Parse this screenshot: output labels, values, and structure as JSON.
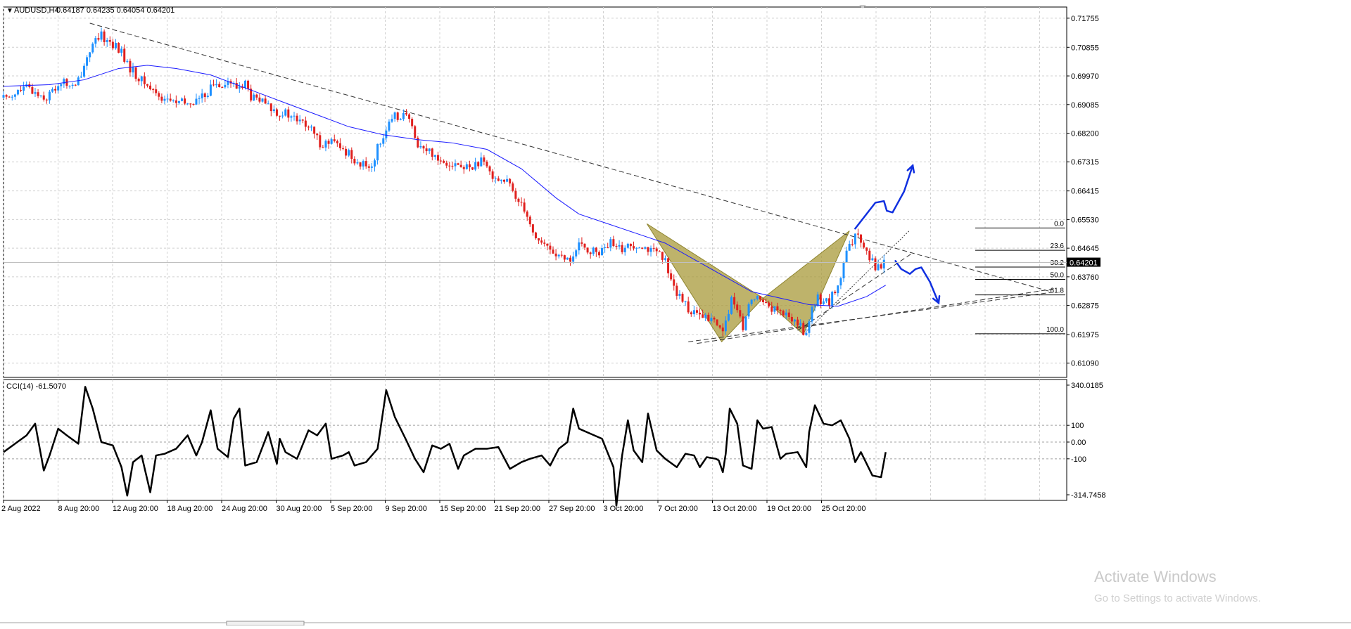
{
  "main_title": {
    "arrow_glyph": "▼",
    "symbol": "AUDUSD,H4",
    "ohlc": "0.64187 0.64235 0.64054 0.64201"
  },
  "indicator_title": "CCI(14) -61.5070",
  "current_price_label": "0.64201",
  "fib_levels": [
    {
      "label": "0.0",
      "price": 0.6527
    },
    {
      "label": "23.6",
      "price": 0.6458
    },
    {
      "label": "38.2",
      "price": 0.6406
    },
    {
      "label": "50.0",
      "price": 0.6368
    },
    {
      "label": "61.8",
      "price": 0.632
    },
    {
      "label": "100.0",
      "price": 0.62
    }
  ],
  "watermark": {
    "line1": "Activate Windows",
    "line2": "Go to Settings to activate Windows."
  },
  "colors": {
    "bull": "#1e90ff",
    "bear": "#e0201e",
    "ma": "#1a1aff",
    "harmonic": "#a89a3a",
    "drawing": "#1030e0",
    "cci": "#000000"
  },
  "chart_data": [
    {
      "type": "candlestick",
      "symbol": "AUDUSD",
      "timeframe": "H4",
      "ylim": [
        0.6065,
        0.721
      ],
      "y_ticks": [
        "0.71755",
        "0.70855",
        "0.69970",
        "0.69085",
        "0.68200",
        "0.67315",
        "0.66415",
        "0.65530",
        "0.64645",
        "0.63760",
        "0.62875",
        "0.61975",
        "0.61090"
      ],
      "x_ticks": [
        "2 Aug 2022",
        "8 Aug 20:00",
        "12 Aug 20:00",
        "18 Aug 20:00",
        "24 Aug 20:00",
        "30 Aug 20:00",
        "5 Sep 20:00",
        "9 Sep 20:00",
        "15 Sep 20:00",
        "21 Sep 20:00",
        "27 Sep 20:00",
        "3 Oct 20:00",
        "7 Oct 20:00",
        "13 Oct 20:00",
        "19 Oct 20:00",
        "25 Oct 20:00"
      ],
      "grid": true,
      "last_close": 0.64201,
      "price_path": [
        [
          0,
          0.693
        ],
        [
          40,
          0.696
        ],
        [
          75,
          0.693
        ],
        [
          100,
          0.698
        ],
        [
          125,
          0.696
        ],
        [
          150,
          0.708
        ],
        [
          170,
          0.712
        ],
        [
          190,
          0.7095
        ],
        [
          205,
          0.707
        ],
        [
          215,
          0.703
        ],
        [
          235,
          0.699
        ],
        [
          255,
          0.696
        ],
        [
          275,
          0.693
        ],
        [
          300,
          0.6915
        ],
        [
          320,
          0.691
        ],
        [
          345,
          0.693
        ],
        [
          365,
          0.697
        ],
        [
          390,
          0.698
        ],
        [
          405,
          0.696
        ],
        [
          420,
          0.6975
        ],
        [
          430,
          0.693
        ],
        [
          445,
          0.692
        ],
        [
          470,
          0.689
        ],
        [
          490,
          0.688
        ],
        [
          510,
          0.686
        ],
        [
          530,
          0.684
        ],
        [
          550,
          0.679
        ],
        [
          575,
          0.679
        ],
        [
          585,
          0.677
        ],
        [
          600,
          0.676
        ],
        [
          620,
          0.672
        ],
        [
          640,
          0.672
        ],
        [
          655,
          0.68
        ],
        [
          665,
          0.683
        ],
        [
          680,
          0.687
        ],
        [
          695,
          0.688
        ],
        [
          705,
          0.686
        ],
        [
          715,
          0.68
        ],
        [
          730,
          0.677
        ],
        [
          745,
          0.676
        ],
        [
          760,
          0.6735
        ],
        [
          780,
          0.673
        ],
        [
          800,
          0.671
        ],
        [
          815,
          0.672
        ],
        [
          830,
          0.673
        ],
        [
          845,
          0.67
        ],
        [
          860,
          0.668
        ],
        [
          875,
          0.667
        ],
        [
          890,
          0.662
        ],
        [
          900,
          0.661
        ],
        [
          910,
          0.657
        ],
        [
          920,
          0.651
        ],
        [
          935,
          0.648
        ],
        [
          950,
          0.646
        ],
        [
          965,
          0.644
        ],
        [
          975,
          0.642
        ],
        [
          990,
          0.644
        ],
        [
          1000,
          0.647
        ],
        [
          1015,
          0.646
        ],
        [
          1030,
          0.645
        ],
        [
          1045,
          0.646
        ],
        [
          1055,
          0.648
        ],
        [
          1065,
          0.646
        ],
        [
          1085,
          0.647
        ],
        [
          1105,
          0.648
        ],
        [
          1115,
          0.647
        ],
        [
          1125,
          0.6455
        ],
        [
          1135,
          0.645
        ],
        [
          1150,
          0.642
        ],
        [
          1160,
          0.638
        ],
        [
          1170,
          0.632
        ],
        [
          1185,
          0.629
        ],
        [
          1200,
          0.626
        ],
        [
          1215,
          0.625
        ],
        [
          1235,
          0.624
        ],
        [
          1245,
          0.6215
        ],
        [
          1255,
          0.623
        ],
        [
          1265,
          0.631
        ],
        [
          1275,
          0.626
        ],
        [
          1285,
          0.622
        ],
        [
          1295,
          0.628
        ],
        [
          1305,
          0.632
        ],
        [
          1315,
          0.63
        ],
        [
          1325,
          0.63
        ],
        [
          1335,
          0.628
        ],
        [
          1345,
          0.627
        ],
        [
          1355,
          0.626
        ],
        [
          1365,
          0.625
        ],
        [
          1375,
          0.624
        ],
        [
          1385,
          0.622
        ],
        [
          1395,
          0.62
        ],
        [
          1405,
          0.627
        ],
        [
          1415,
          0.631
        ],
        [
          1425,
          0.63
        ],
        [
          1435,
          0.63
        ],
        [
          1445,
          0.633
        ],
        [
          1455,
          0.637
        ],
        [
          1465,
          0.645
        ],
        [
          1475,
          0.648
        ],
        [
          1485,
          0.651
        ],
        [
          1495,
          0.648
        ],
        [
          1505,
          0.644
        ],
        [
          1515,
          0.641
        ],
        [
          1525,
          0.641
        ],
        [
          1533,
          0.642
        ]
      ],
      "moving_average": [
        [
          0,
          0.6965
        ],
        [
          80,
          0.697
        ],
        [
          140,
          0.6985
        ],
        [
          200,
          0.702
        ],
        [
          250,
          0.703
        ],
        [
          300,
          0.702
        ],
        [
          360,
          0.7
        ],
        [
          420,
          0.696
        ],
        [
          480,
          0.692
        ],
        [
          540,
          0.688
        ],
        [
          600,
          0.684
        ],
        [
          660,
          0.6815
        ],
        [
          720,
          0.68
        ],
        [
          780,
          0.679
        ],
        [
          840,
          0.677
        ],
        [
          900,
          0.671
        ],
        [
          960,
          0.662
        ],
        [
          1000,
          0.657
        ],
        [
          1050,
          0.654
        ],
        [
          1100,
          0.651
        ],
        [
          1150,
          0.648
        ],
        [
          1200,
          0.643
        ],
        [
          1250,
          0.638
        ],
        [
          1300,
          0.633
        ],
        [
          1350,
          0.631
        ],
        [
          1400,
          0.629
        ],
        [
          1450,
          0.6285
        ],
        [
          1500,
          0.6315
        ],
        [
          1533,
          0.635
        ]
      ],
      "trendlines": [
        {
          "style": "dashed",
          "from": [
            150,
            0.716
          ],
          "to": [
            1820,
            0.633
          ]
        },
        {
          "style": "dashed",
          "from": [
            1190,
            0.6175
          ],
          "to": [
            1830,
            0.633
          ]
        },
        {
          "style": "dashed",
          "from": [
            1205,
            0.617
          ],
          "to": [
            1830,
            0.634
          ]
        },
        {
          "style": "dashed",
          "from": [
            1380,
            0.621
          ],
          "to": [
            1580,
            0.645
          ]
        }
      ],
      "harmonic_pattern": {
        "triangle_1": [
          [
            1118,
            0.654
          ],
          [
            1248,
            0.6175
          ],
          [
            1320,
            0.631
          ]
        ],
        "triangle_2": [
          [
            1320,
            0.631
          ],
          [
            1470,
            0.6518
          ],
          [
            1390,
            0.6198
          ]
        ]
      },
      "drawn_arrows": [
        {
          "label": "up",
          "points": [
            [
              1480,
              0.6525
            ],
            [
              1515,
              0.6605
            ],
            [
              1530,
              0.661
            ],
            [
              1535,
              0.658
            ],
            [
              1545,
              0.6575
            ],
            [
              1565,
              0.664
            ],
            [
              1580,
              0.672
            ]
          ]
        },
        {
          "label": "down",
          "points": [
            [
              1550,
              0.6425
            ],
            [
              1560,
              0.64
            ],
            [
              1575,
              0.6385
            ],
            [
              1585,
              0.64
            ],
            [
              1595,
              0.6405
            ],
            [
              1610,
              0.636
            ],
            [
              1625,
              0.6295
            ]
          ]
        }
      ]
    },
    {
      "type": "line",
      "name": "CCI(14)",
      "ylim": [
        -314.7458,
        340.0185
      ],
      "y_ticks": [
        "340.0185",
        "100",
        "0.00",
        "-100",
        "-314.7458"
      ],
      "ref_lines": [
        100,
        0,
        -100
      ],
      "values": [
        [
          0,
          -60
        ],
        [
          20,
          -10
        ],
        [
          40,
          40
        ],
        [
          55,
          110
        ],
        [
          70,
          -170
        ],
        [
          80,
          -80
        ],
        [
          95,
          80
        ],
        [
          110,
          40
        ],
        [
          130,
          -10
        ],
        [
          142,
          330
        ],
        [
          155,
          200
        ],
        [
          170,
          0
        ],
        [
          190,
          -20
        ],
        [
          205,
          -150
        ],
        [
          215,
          -320
        ],
        [
          225,
          -120
        ],
        [
          240,
          -80
        ],
        [
          255,
          -300
        ],
        [
          265,
          -80
        ],
        [
          280,
          -70
        ],
        [
          300,
          -40
        ],
        [
          320,
          40
        ],
        [
          335,
          -80
        ],
        [
          345,
          0
        ],
        [
          360,
          190
        ],
        [
          372,
          -40
        ],
        [
          390,
          -90
        ],
        [
          400,
          140
        ],
        [
          410,
          200
        ],
        [
          420,
          -140
        ],
        [
          440,
          -120
        ],
        [
          460,
          60
        ],
        [
          475,
          -130
        ],
        [
          480,
          20
        ],
        [
          490,
          -60
        ],
        [
          510,
          -100
        ],
        [
          530,
          70
        ],
        [
          545,
          40
        ],
        [
          560,
          110
        ],
        [
          570,
          -100
        ],
        [
          590,
          -80
        ],
        [
          600,
          -60
        ],
        [
          610,
          -140
        ],
        [
          630,
          -120
        ],
        [
          650,
          -40
        ],
        [
          665,
          310
        ],
        [
          680,
          150
        ],
        [
          700,
          10
        ],
        [
          715,
          -100
        ],
        [
          730,
          -180
        ],
        [
          745,
          -20
        ],
        [
          760,
          -40
        ],
        [
          775,
          -10
        ],
        [
          790,
          -160
        ],
        [
          800,
          -80
        ],
        [
          820,
          -40
        ],
        [
          840,
          -40
        ],
        [
          860,
          -30
        ],
        [
          880,
          -160
        ],
        [
          900,
          -120
        ],
        [
          915,
          -100
        ],
        [
          935,
          -80
        ],
        [
          950,
          -140
        ],
        [
          965,
          -40
        ],
        [
          980,
          0
        ],
        [
          990,
          200
        ],
        [
          1000,
          80
        ],
        [
          1020,
          50
        ],
        [
          1040,
          20
        ],
        [
          1060,
          -150
        ],
        [
          1065,
          -380
        ],
        [
          1075,
          -80
        ],
        [
          1085,
          130
        ],
        [
          1095,
          -50
        ],
        [
          1110,
          -120
        ],
        [
          1120,
          170
        ],
        [
          1135,
          -50
        ],
        [
          1150,
          -100
        ],
        [
          1170,
          -150
        ],
        [
          1185,
          -70
        ],
        [
          1200,
          -80
        ],
        [
          1210,
          -150
        ],
        [
          1222,
          -90
        ],
        [
          1238,
          -100
        ],
        [
          1243,
          -110
        ],
        [
          1250,
          -180
        ],
        [
          1255,
          -70
        ],
        [
          1262,
          200
        ],
        [
          1275,
          110
        ],
        [
          1285,
          -140
        ],
        [
          1300,
          -160
        ],
        [
          1310,
          130
        ],
        [
          1320,
          80
        ],
        [
          1335,
          90
        ],
        [
          1350,
          -100
        ],
        [
          1360,
          -70
        ],
        [
          1380,
          -60
        ],
        [
          1390,
          -120
        ],
        [
          1395,
          -150
        ],
        [
          1400,
          60
        ],
        [
          1410,
          220
        ],
        [
          1425,
          110
        ],
        [
          1440,
          100
        ],
        [
          1455,
          130
        ],
        [
          1470,
          20
        ],
        [
          1480,
          -120
        ],
        [
          1490,
          -60
        ],
        [
          1510,
          -200
        ],
        [
          1525,
          -210
        ],
        [
          1533,
          -60
        ]
      ]
    }
  ]
}
